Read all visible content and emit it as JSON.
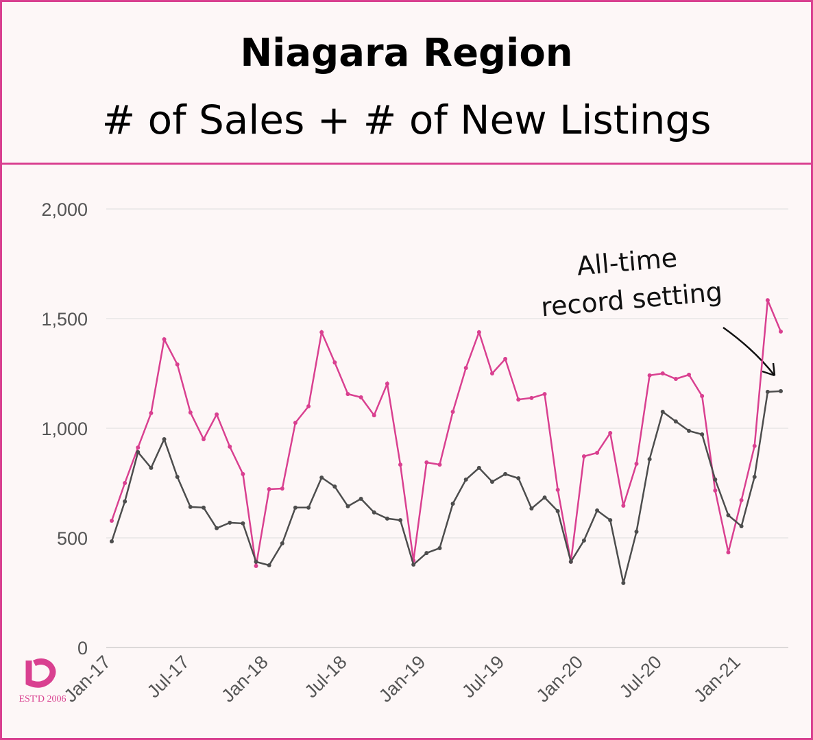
{
  "chart_data": {
    "type": "line",
    "title": "Niagara Region",
    "subtitle": "# of Sales + # of New Listings",
    "categories": [
      "Jan-17",
      null,
      null,
      null,
      null,
      null,
      "Jul-17",
      null,
      null,
      null,
      null,
      null,
      "Jan-18",
      null,
      null,
      null,
      null,
      null,
      "Jul-18",
      null,
      null,
      null,
      null,
      null,
      "Jan-19",
      null,
      null,
      null,
      null,
      null,
      "Jul-19",
      null,
      null,
      null,
      null,
      null,
      "Jan-20",
      null,
      null,
      null,
      null,
      null,
      "Jul-20",
      null,
      null,
      null,
      null,
      null,
      "Jan-21",
      null,
      null,
      null
    ],
    "series": [
      {
        "color": "#d94090",
        "values": [
          578,
          750,
          912,
          1069,
          1406,
          1291,
          1072,
          950,
          1063,
          916,
          791,
          372,
          722,
          725,
          1025,
          1100,
          1438,
          1300,
          1156,
          1141,
          1059,
          1203,
          834,
          397,
          844,
          834,
          1075,
          1275,
          1438,
          1250,
          1316,
          1131,
          1138,
          1156,
          719,
          391,
          872,
          888,
          978,
          647,
          838,
          1241,
          1250,
          1225,
          1244,
          1147,
          716,
          434,
          672,
          919,
          1584,
          1441
        ]
      },
      {
        "color": "#4d4d4d",
        "values": [
          484,
          666,
          891,
          819,
          950,
          778,
          641,
          638,
          544,
          569,
          566,
          391,
          375,
          475,
          638,
          638,
          775,
          734,
          644,
          678,
          616,
          588,
          581,
          378,
          431,
          453,
          656,
          766,
          819,
          756,
          791,
          772,
          634,
          684,
          622,
          391,
          488,
          625,
          581,
          294,
          528,
          859,
          1075,
          1031,
          988,
          972,
          766,
          603,
          553,
          778,
          1166,
          1169
        ]
      }
    ],
    "ylim": [
      0,
      2000
    ],
    "yticks": [
      0,
      500,
      {
        "value": 1000,
        "label": "1,000"
      },
      {
        "value": 1500,
        "label": "1,500"
      },
      {
        "value": 2000,
        "label": "2,000"
      }
    ],
    "grid": true,
    "annotations": [
      "All-time",
      "record setting"
    ],
    "logo_text": "EST'D 2006"
  }
}
